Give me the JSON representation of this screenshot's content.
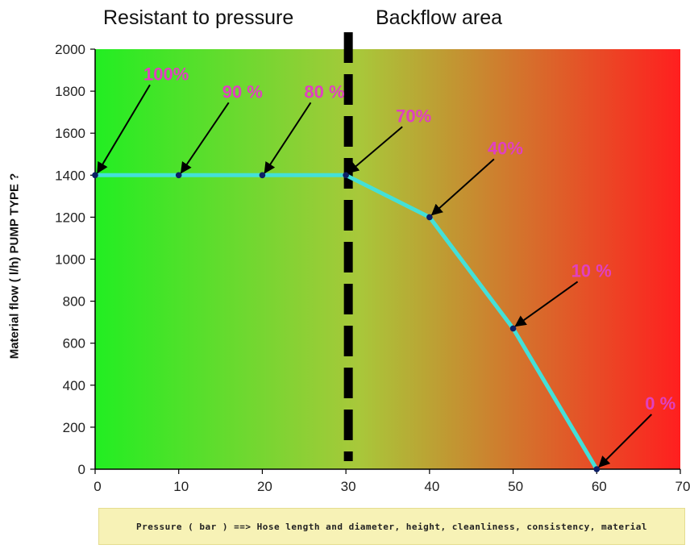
{
  "region_titles": {
    "left": "Resistant to pressure",
    "right": "Backflow area"
  },
  "chart_data": {
    "type": "line",
    "ylabel": "Material flow ( l/h) PUMP TYPE ?",
    "xlabel": "Pressure ( bar ) ==> Hose length and diameter, height, cleanliness, consistency, material",
    "xlim": [
      0,
      70
    ],
    "ylim": [
      0,
      2000
    ],
    "x_ticks": [
      0,
      10,
      20,
      30,
      40,
      50,
      60,
      70
    ],
    "y_ticks": [
      0,
      200,
      400,
      600,
      800,
      1000,
      1200,
      1400,
      1600,
      1800,
      2000
    ],
    "x_tick_labels": [
      "0",
      "10",
      "20",
      "30",
      "40",
      "50",
      "60",
      "70"
    ],
    "y_tick_labels": [
      "0",
      "200",
      "400",
      "600",
      "800",
      "1000",
      "1200",
      "1400",
      "1600",
      "1800",
      "2000"
    ],
    "series": [
      {
        "x": [
          0,
          10,
          20,
          30,
          40,
          50,
          60
        ],
        "y": [
          1400,
          1400,
          1400,
          1400,
          1200,
          670,
          0
        ]
      }
    ],
    "annotations": [
      {
        "text": "100%",
        "x": 0,
        "y": 1400
      },
      {
        "text": "90 %",
        "x": 10,
        "y": 1400
      },
      {
        "text": "80 %",
        "x": 20,
        "y": 1400
      },
      {
        "text": "70%",
        "x": 30,
        "y": 1400
      },
      {
        "text": "40%",
        "x": 40,
        "y": 1200
      },
      {
        "text": "10 %",
        "x": 50,
        "y": 670
      },
      {
        "text": "0 %",
        "x": 60,
        "y": 0
      }
    ],
    "divider_x": 30,
    "colors": {
      "gradient_start": "#22ee22",
      "gradient_mid": "#a8c83a",
      "gradient_end": "#ff1f1f",
      "line": "#44e0d8",
      "marker": "#0d1f66",
      "annotation": "#e040c0",
      "divider": "#000000"
    }
  }
}
